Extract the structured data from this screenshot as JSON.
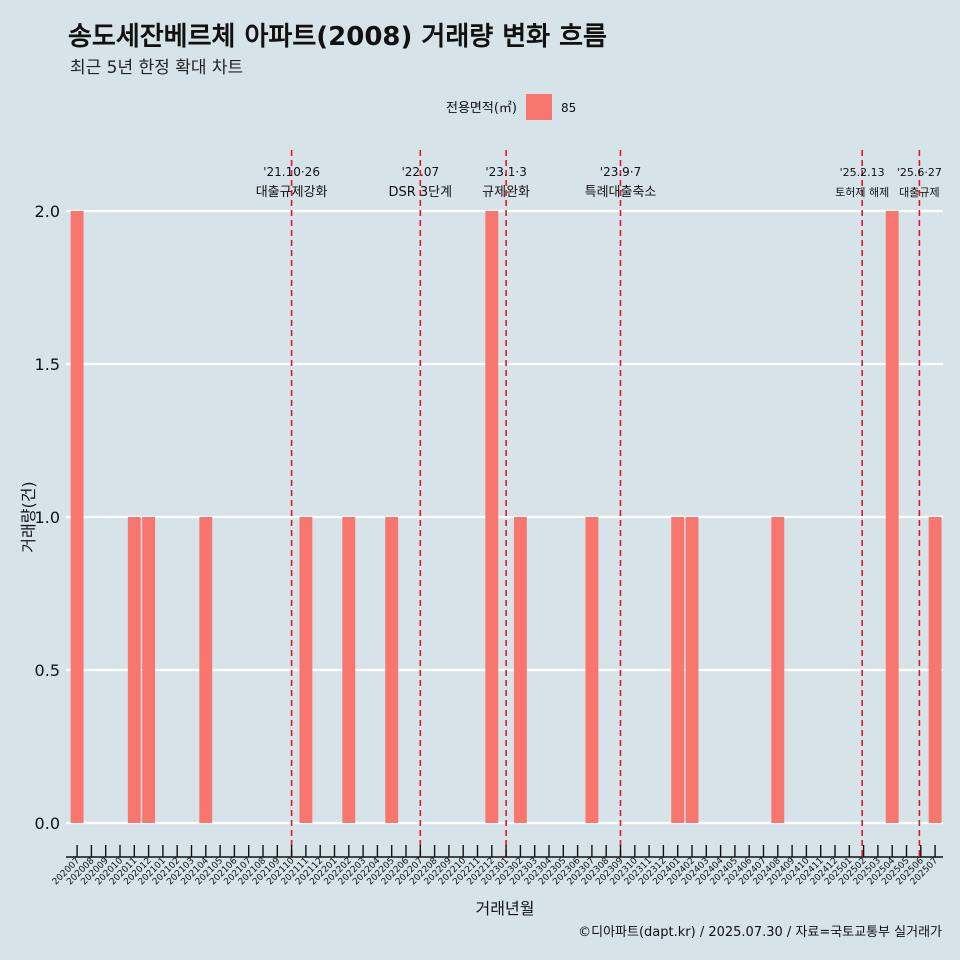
{
  "title": "송도세잔베르체 아파트(2008) 거래량 변화 흐름",
  "subtitle": "최근 5년 한정 확대 차트",
  "caption": "©디아파트(dapt.kr) / 2025.07.30 / 자료=국토교통부 실거래가",
  "colors": {
    "background": "#d6e4ea",
    "bar": "#f8766d",
    "event_line": "#e8141e",
    "grid": "#ffffff"
  },
  "chart_data": {
    "type": "bar",
    "xlabel": "거래년월",
    "ylabel": "거래량(건)",
    "ylim": [
      0,
      2
    ],
    "yticks": [
      "0.0",
      "0.5",
      "1.0",
      "1.5",
      "2.0"
    ],
    "legend": {
      "title": "전용면적(㎡)",
      "position": "top",
      "entries": [
        "85"
      ]
    },
    "categories": [
      "202007",
      "202008",
      "202009",
      "202010",
      "202011",
      "202012",
      "202101",
      "202102",
      "202103",
      "202104",
      "202105",
      "202106",
      "202107",
      "202108",
      "202109",
      "202110",
      "202111",
      "202112",
      "202201",
      "202202",
      "202203",
      "202204",
      "202205",
      "202206",
      "202207",
      "202208",
      "202209",
      "202210",
      "202211",
      "202212",
      "202301",
      "202302",
      "202303",
      "202304",
      "202305",
      "202306",
      "202307",
      "202308",
      "202309",
      "202310",
      "202311",
      "202312",
      "202401",
      "202402",
      "202403",
      "202404",
      "202405",
      "202406",
      "202407",
      "202408",
      "202409",
      "202410",
      "202411",
      "202412",
      "202501",
      "202502",
      "202503",
      "202504",
      "202505",
      "202506",
      "202507"
    ],
    "series": [
      {
        "name": "85",
        "values": [
          2,
          0,
          0,
          0,
          1,
          1,
          0,
          0,
          0,
          1,
          0,
          0,
          0,
          0,
          0,
          0,
          1,
          0,
          0,
          1,
          0,
          0,
          1,
          0,
          0,
          0,
          0,
          0,
          0,
          2,
          0,
          1,
          0,
          0,
          0,
          0,
          1,
          0,
          0,
          0,
          0,
          0,
          1,
          1,
          0,
          0,
          0,
          0,
          0,
          1,
          0,
          0,
          0,
          0,
          0,
          0,
          0,
          2,
          0,
          0,
          1
        ]
      }
    ],
    "annotations": [
      {
        "x": 15.0,
        "date": "'21.10·26",
        "label": "대출규제강화"
      },
      {
        "x": 24.0,
        "date": "'22.07",
        "label": "DSR 3단계"
      },
      {
        "x": 30.0,
        "date": "'23.1·3",
        "label": "규제완화"
      },
      {
        "x": 38.0,
        "date": "'23.9·7",
        "label": "특례대출축소"
      },
      {
        "x": 54.9,
        "date": "'25.2.13",
        "label": "토허제 해제"
      },
      {
        "x": 58.9,
        "date": "'25.6·27",
        "label": "대출규제"
      }
    ]
  }
}
